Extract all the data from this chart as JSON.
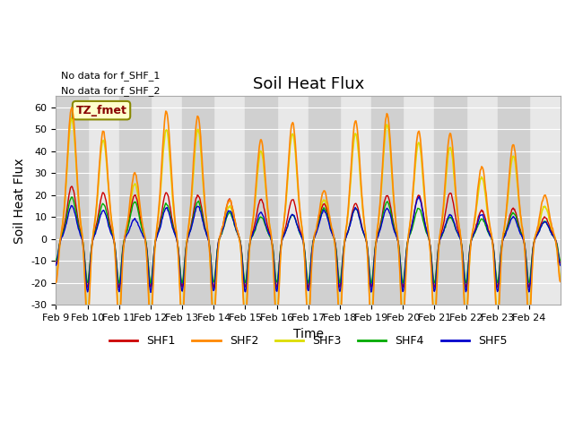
{
  "title": "Soil Heat Flux",
  "xlabel": "Time",
  "ylabel": "Soil Heat Flux",
  "ylim": [
    -30,
    65
  ],
  "yticks": [
    -30,
    -20,
    -10,
    0,
    10,
    20,
    30,
    40,
    50,
    60
  ],
  "xtick_labels": [
    "Feb 9",
    "Feb 10",
    "Feb 11",
    "Feb 12",
    "Feb 13",
    "Feb 14",
    "Feb 15",
    "Feb 16",
    "Feb 17",
    "Feb 18",
    "Feb 19",
    "Feb 20",
    "Feb 21",
    "Feb 22",
    "Feb 23",
    "Feb 24"
  ],
  "colors": {
    "SHF1": "#cc0000",
    "SHF2": "#ff8800",
    "SHF3": "#dddd00",
    "SHF4": "#00aa00",
    "SHF5": "#0000cc"
  },
  "legend_label": "TZ_fmet",
  "note1": "No data for f_SHF_1",
  "note2": "No data for f_SHF_2",
  "background_color": "#ffffff",
  "plot_bg_color": "#e8e8e8",
  "band_color": "#d0d0d0",
  "n_days": 16,
  "points_per_day": 48,
  "title_fontsize": 13,
  "axis_fontsize": 10,
  "tick_fontsize": 8,
  "shf2_peaks": [
    60,
    49,
    30,
    58,
    56,
    18,
    45,
    53,
    22,
    54,
    57,
    49,
    48,
    33,
    43,
    20
  ],
  "shf3_peaks": [
    55,
    45,
    25,
    50,
    50,
    15,
    40,
    48,
    18,
    48,
    52,
    44,
    42,
    28,
    38,
    15
  ],
  "shf1_peaks": [
    24,
    21,
    20,
    21,
    20,
    18,
    18,
    18,
    16,
    16,
    20,
    20,
    21,
    13,
    14,
    10
  ],
  "shf4_peaks": [
    19,
    16,
    17,
    16,
    17,
    12,
    10,
    11,
    14,
    14,
    17,
    14,
    10,
    9,
    12,
    8
  ],
  "shf5_peaks": [
    15,
    13,
    9,
    14,
    15,
    13,
    12,
    11,
    13,
    14,
    14,
    19,
    11,
    11,
    10,
    8
  ]
}
